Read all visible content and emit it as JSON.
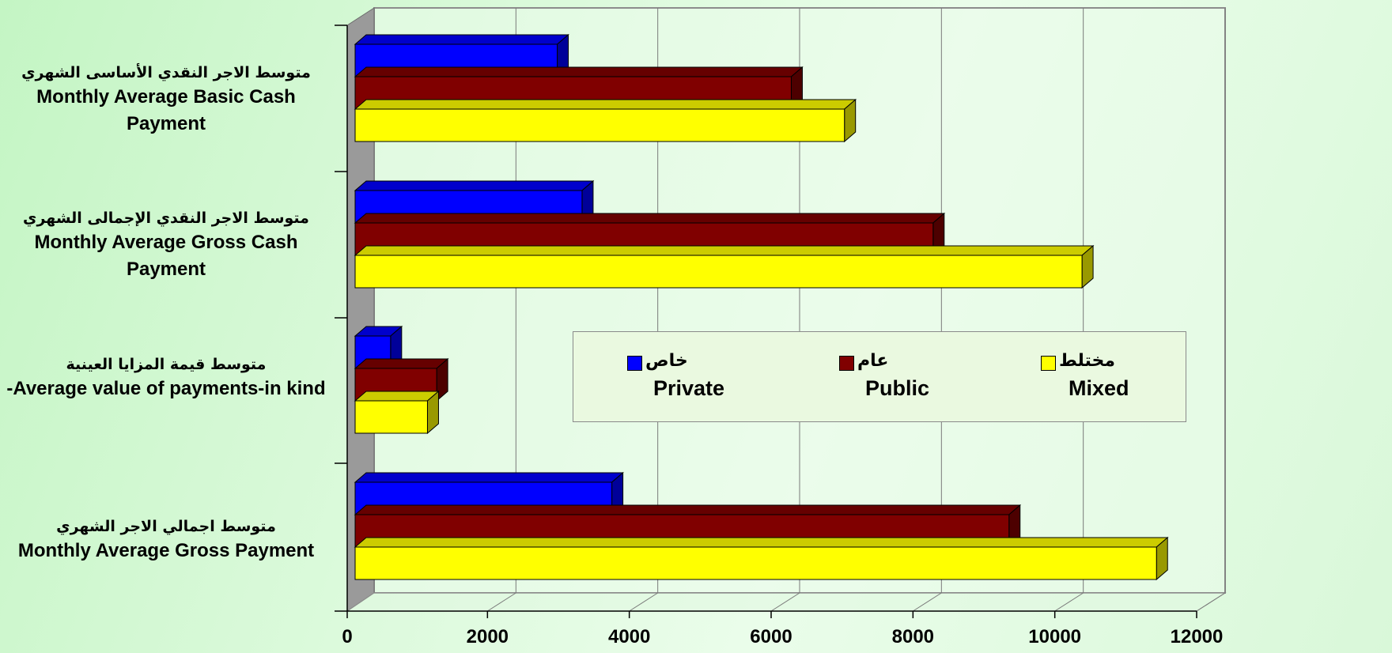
{
  "chart_data": {
    "type": "bar",
    "orientation": "horizontal",
    "style": "3d",
    "categories": [
      {
        "ar": "متوسط الاجر النقدي الأساسى الشهري",
        "en": "Monthly Average Basic Cash Payment"
      },
      {
        "ar": "متوسط الاجر النقدي الإجمالى الشهري",
        "en": "Monthly Average Gross Cash Payment"
      },
      {
        "ar": "متوسط قيمة المزايا العينية",
        "en": "-Average value of payments-in kind"
      },
      {
        "ar": "متوسط اجمالي الاجر الشهري",
        "en": "Monthly Average Gross Payment"
      }
    ],
    "series": [
      {
        "name": "Private",
        "name_ar": "خاص",
        "color": "#0000ff",
        "values": [
          2850,
          3200,
          500,
          3620
        ]
      },
      {
        "name": "Public",
        "name_ar": "عام",
        "color": "#800000",
        "values": [
          6150,
          8150,
          1150,
          9220
        ]
      },
      {
        "name": "Mixed",
        "name_ar": "مختلط",
        "color": "#ffff00",
        "values": [
          6900,
          10250,
          1020,
          11300
        ]
      }
    ],
    "x_ticks": [
      0,
      2000,
      4000,
      6000,
      8000,
      10000,
      12000
    ],
    "xlim": [
      0,
      12000
    ],
    "grid": "vertical",
    "legend_position": "center-right"
  }
}
